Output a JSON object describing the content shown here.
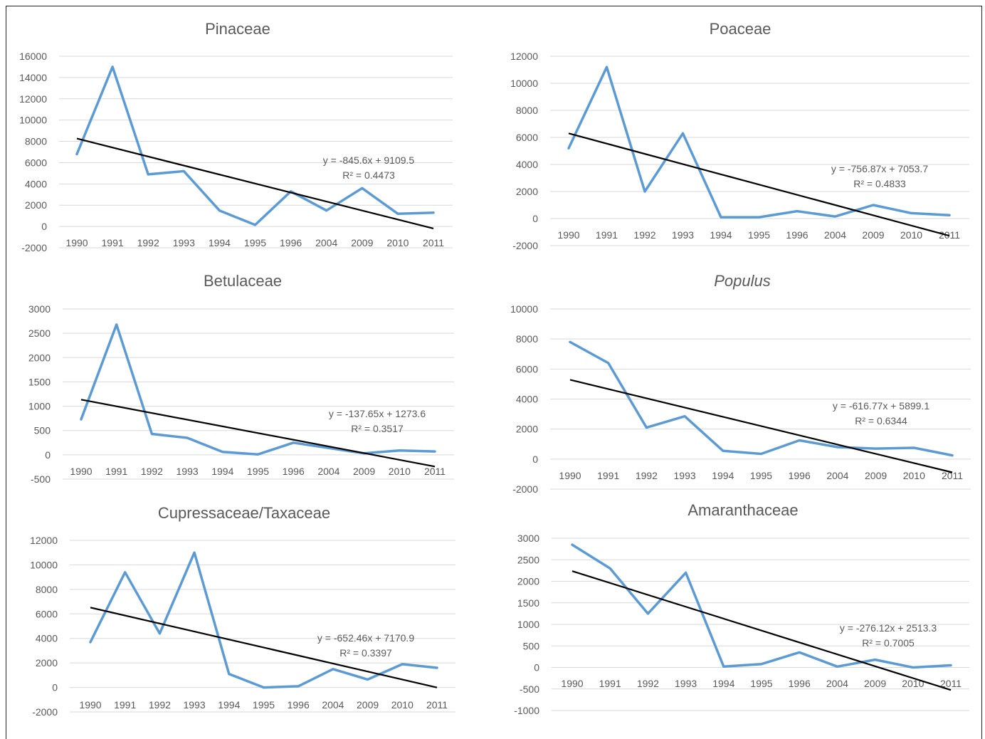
{
  "chart_data": [
    {
      "type": "line",
      "title": "Pinaceae",
      "title_italic": false,
      "categories": [
        "1990",
        "1991",
        "1992",
        "1993",
        "1994",
        "1995",
        "1996",
        "2004",
        "2009",
        "2010",
        "2011"
      ],
      "series": [
        {
          "values": [
            6800,
            15000,
            4900,
            5200,
            1500,
            150,
            3300,
            1500,
            3600,
            1200,
            1300
          ],
          "color": "#5B9BD5"
        }
      ],
      "trendline": {
        "slope": -845.6,
        "intercept": 9109.5,
        "equation": "y = -845.6x + 9109.5",
        "r2": "R² = 0.4473",
        "color": "#000000"
      },
      "ylim": [
        -2000,
        16000
      ],
      "yticks": [
        -2000,
        0,
        2000,
        4000,
        6000,
        8000,
        10000,
        12000,
        14000,
        16000
      ],
      "grid": true
    },
    {
      "type": "line",
      "title": "Poaceae",
      "title_italic": false,
      "categories": [
        "1990",
        "1991",
        "1992",
        "1993",
        "1994",
        "1995",
        "1996",
        "2004",
        "2009",
        "2010",
        "2011"
      ],
      "series": [
        {
          "values": [
            5200,
            11200,
            2000,
            6300,
            100,
            100,
            550,
            150,
            1000,
            400,
            250
          ],
          "color": "#5B9BD5"
        }
      ],
      "trendline": {
        "slope": -756.87,
        "intercept": 7053.7,
        "equation": "y = -756.87x + 7053.7",
        "r2": "R² = 0.4833",
        "color": "#000000"
      },
      "ylim": [
        -2000,
        12000
      ],
      "yticks": [
        -2000,
        0,
        2000,
        4000,
        6000,
        8000,
        10000,
        12000
      ],
      "grid": true
    },
    {
      "type": "line",
      "title": "Betulaceae",
      "title_italic": false,
      "categories": [
        "1990",
        "1991",
        "1992",
        "1993",
        "1994",
        "1995",
        "1996",
        "2004",
        "2009",
        "2010",
        "2011"
      ],
      "series": [
        {
          "values": [
            730,
            2680,
            430,
            350,
            60,
            10,
            250,
            140,
            30,
            90,
            70
          ],
          "color": "#5B9BD5"
        }
      ],
      "trendline": {
        "slope": -137.65,
        "intercept": 1273.6,
        "equation": "y = -137.65x + 1273.6",
        "r2": "R² = 0.3517",
        "color": "#000000"
      },
      "ylim": [
        -500,
        3000
      ],
      "yticks": [
        -500,
        0,
        500,
        1000,
        1500,
        2000,
        2500,
        3000
      ],
      "grid": true
    },
    {
      "type": "line",
      "title": "Populus",
      "title_italic": true,
      "categories": [
        "1990",
        "1991",
        "1992",
        "1993",
        "1994",
        "1995",
        "1996",
        "2004",
        "2009",
        "2010",
        "2011"
      ],
      "series": [
        {
          "values": [
            7800,
            6400,
            2100,
            2850,
            550,
            350,
            1250,
            800,
            700,
            750,
            250
          ],
          "color": "#5B9BD5"
        }
      ],
      "trendline": {
        "slope": -616.77,
        "intercept": 5899.1,
        "equation": "y = -616.77x + 5899.1",
        "r2": "R² = 0.6344",
        "color": "#000000"
      },
      "ylim": [
        -2000,
        10000
      ],
      "yticks": [
        -2000,
        0,
        2000,
        4000,
        6000,
        8000,
        10000
      ],
      "grid": true
    },
    {
      "type": "line",
      "title": "Cupressaceae/Taxaceae",
      "title_italic": false,
      "categories": [
        "1990",
        "1991",
        "1992",
        "1993",
        "1994",
        "1995",
        "1996",
        "2004",
        "2009",
        "2010",
        "2011"
      ],
      "series": [
        {
          "values": [
            3700,
            9400,
            4400,
            11000,
            1100,
            0,
            100,
            1500,
            650,
            1900,
            1600
          ],
          "color": "#5B9BD5"
        }
      ],
      "trendline": {
        "slope": -652.46,
        "intercept": 7170.9,
        "equation": "y = -652.46x + 7170.9",
        "r2": "R² = 0.3397",
        "color": "#000000"
      },
      "ylim": [
        -2000,
        12000
      ],
      "yticks": [
        -2000,
        0,
        2000,
        4000,
        6000,
        8000,
        10000,
        12000
      ],
      "grid": true
    },
    {
      "type": "line",
      "title": "Amaranthaceae",
      "title_italic": false,
      "categories": [
        "1990",
        "1991",
        "1992",
        "1993",
        "1994",
        "1995",
        "1996",
        "2004",
        "2009",
        "2010",
        "2011"
      ],
      "series": [
        {
          "values": [
            2850,
            2300,
            1250,
            2200,
            20,
            80,
            350,
            20,
            180,
            0,
            50
          ],
          "color": "#5B9BD5"
        }
      ],
      "trendline": {
        "slope": -276.12,
        "intercept": 2513.3,
        "equation": "y = -276.12x + 2513.3",
        "r2": "R² = 0.7005",
        "color": "#000000"
      },
      "ylim": [
        -1000,
        3000
      ],
      "yticks": [
        -1000,
        -500,
        0,
        500,
        1000,
        1500,
        2000,
        2500,
        3000
      ],
      "grid": true
    }
  ]
}
